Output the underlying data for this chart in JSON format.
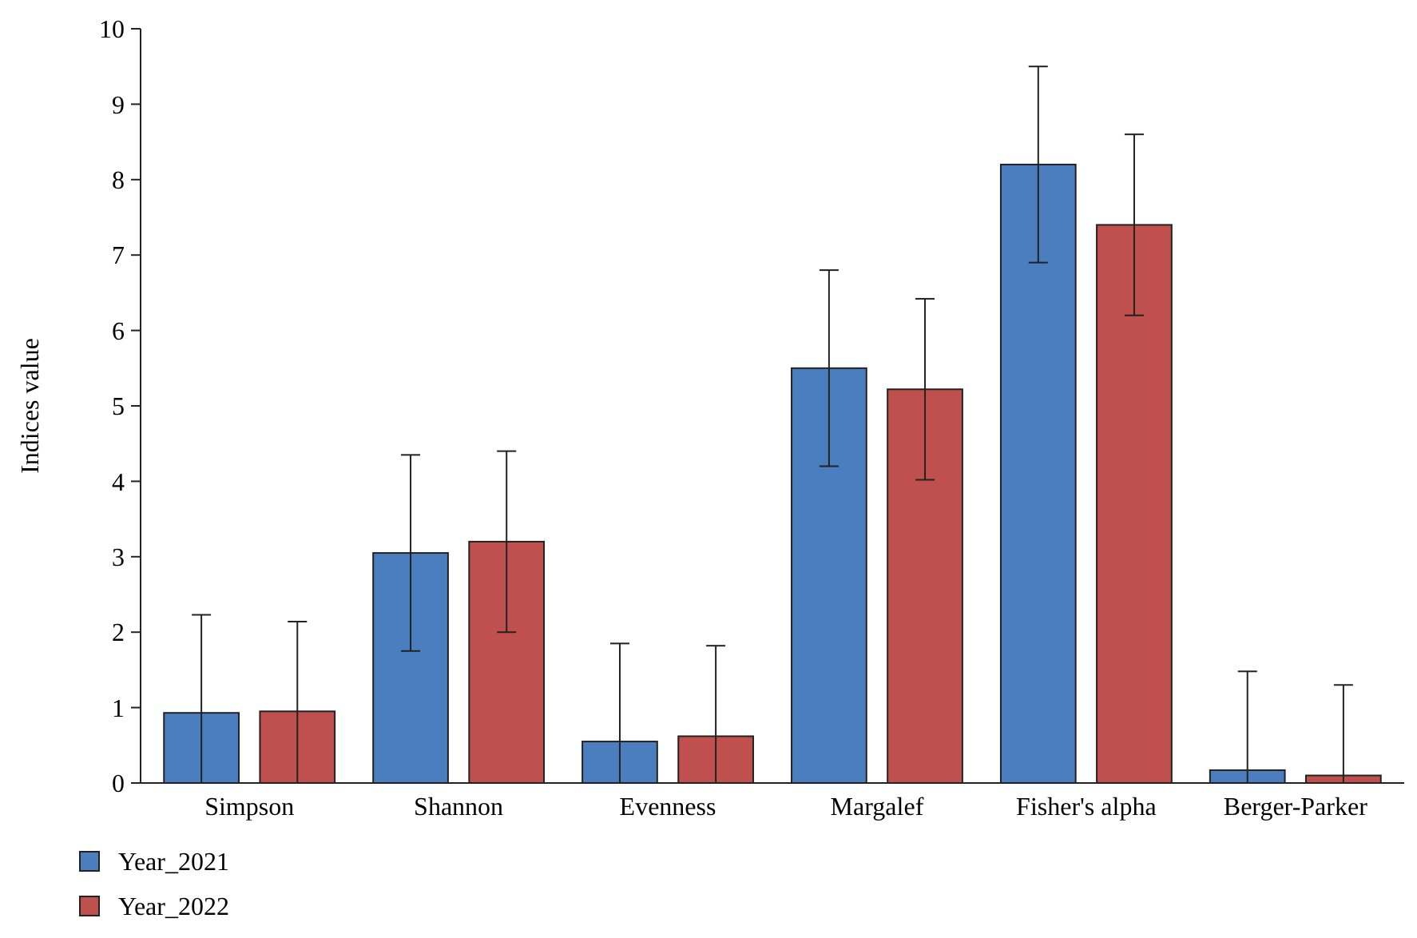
{
  "chart_data": {
    "type": "bar",
    "ylabel": "Indices value",
    "categories": [
      "Simpson",
      "Shannon",
      "Evenness",
      "Margalef",
      "Fisher's alpha",
      "Berger-Parker"
    ],
    "series": [
      {
        "name": "Year_2021",
        "color": "#4a7ebf",
        "values": [
          0.93,
          3.05,
          0.55,
          5.5,
          8.2,
          0.17
        ],
        "errors": [
          [
            0,
            2.23
          ],
          1.3,
          [
            0,
            1.85
          ],
          1.3,
          1.3,
          [
            0,
            1.48
          ]
        ]
      },
      {
        "name": "Year_2022",
        "color": "#c0504d",
        "values": [
          0.95,
          3.2,
          0.62,
          5.22,
          7.4,
          0.1
        ],
        "errors": [
          [
            0,
            2.14
          ],
          1.2,
          [
            0,
            1.82
          ],
          1.2,
          1.2,
          [
            0,
            1.3
          ]
        ]
      }
    ],
    "ylim": [
      0,
      10
    ],
    "yticks": [
      0,
      1,
      2,
      3,
      4,
      5,
      6,
      7,
      8,
      9,
      10
    ],
    "grid": false,
    "legend": "bottom left"
  }
}
